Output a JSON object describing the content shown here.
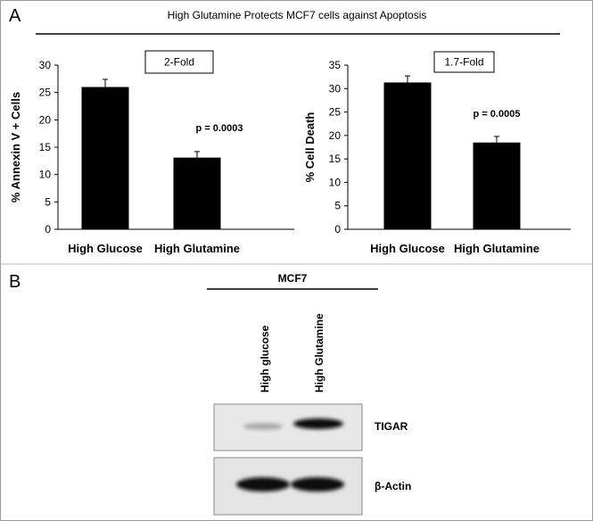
{
  "panel_a_label": "A",
  "title": "High Glutamine Protects MCF7 cells against Apoptosis",
  "chart_data": [
    {
      "type": "bar",
      "ylabel": "% Annexin V + Cells",
      "categories": [
        "High Glucose",
        "High Glutamine"
      ],
      "values": [
        26,
        13.1
      ],
      "errors": [
        1.4,
        1.1
      ],
      "color": "#000000",
      "ylim": [
        0,
        30
      ],
      "yticks": [
        0,
        5,
        10,
        15,
        20,
        25,
        30
      ],
      "fold_label": "2-Fold",
      "p_value": "p = 0.0003"
    },
    {
      "type": "bar",
      "ylabel": "% Cell Death",
      "categories": [
        "High Glucose",
        "High Glutamine"
      ],
      "values": [
        31.3,
        18.5
      ],
      "errors": [
        1.4,
        1.3
      ],
      "color": "#000000",
      "ylim": [
        0,
        35
      ],
      "yticks": [
        0,
        5,
        10,
        15,
        20,
        25,
        30,
        35
      ],
      "fold_label": "1.7-Fold",
      "p_value": "p = 0.0005"
    }
  ],
  "panel_b_label": "B",
  "blot": {
    "cell_line": "MCF7",
    "lanes": [
      "High glucose",
      "High Glutamine"
    ],
    "proteins": [
      "TIGAR",
      "β-Actin"
    ]
  }
}
